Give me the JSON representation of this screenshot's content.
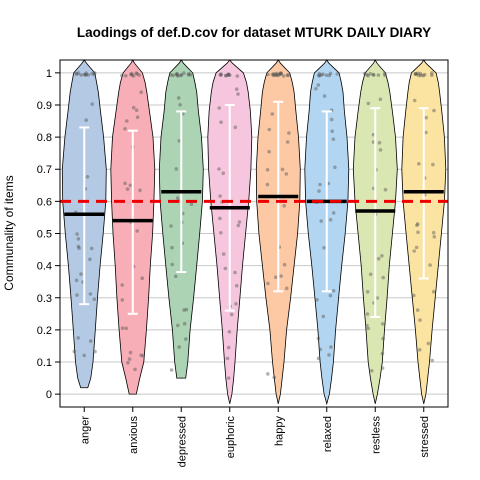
{
  "chart_data": {
    "type": "violin",
    "title": "Laodings of def.D.cov for dataset MTURK DAILY DIARY",
    "xlabel": "",
    "ylabel": "Communality of items",
    "ylim": [
      -0.04,
      1.04
    ],
    "yticks": [
      "0",
      "0.1",
      "0.2",
      "0.3",
      "0.4",
      "0.5",
      "0.6",
      "0.7",
      "0.8",
      "0.9",
      "1"
    ],
    "grid": true,
    "reference_line": {
      "value": 0.6,
      "color": "#ee0000",
      "style": "dashed"
    },
    "categories": [
      "anger",
      "anxious",
      "depressed",
      "euphoric",
      "happy",
      "relaxed",
      "restless",
      "stressed"
    ],
    "series": [
      {
        "category": "anger",
        "color": "#b4c9e3",
        "median": 0.56,
        "lower": 0.28,
        "upper": 0.83
      },
      {
        "category": "anxious",
        "color": "#f7aeb6",
        "median": 0.54,
        "lower": 0.25,
        "upper": 0.82
      },
      {
        "category": "depressed",
        "color": "#acd3b4",
        "median": 0.63,
        "lower": 0.38,
        "upper": 0.88
      },
      {
        "category": "euphoric",
        "color": "#f6c6de",
        "median": 0.58,
        "lower": 0.26,
        "upper": 0.9
      },
      {
        "category": "happy",
        "color": "#fcc9a4",
        "median": 0.615,
        "lower": 0.32,
        "upper": 0.91
      },
      {
        "category": "relaxed",
        "color": "#b2d6f1",
        "median": 0.6,
        "lower": 0.32,
        "upper": 0.88
      },
      {
        "category": "restless",
        "color": "#dbe7b2",
        "median": 0.57,
        "lower": 0.24,
        "upper": 0.89
      },
      {
        "category": "stressed",
        "color": "#fbe3a2",
        "median": 0.63,
        "lower": 0.36,
        "upper": 0.89
      }
    ]
  }
}
